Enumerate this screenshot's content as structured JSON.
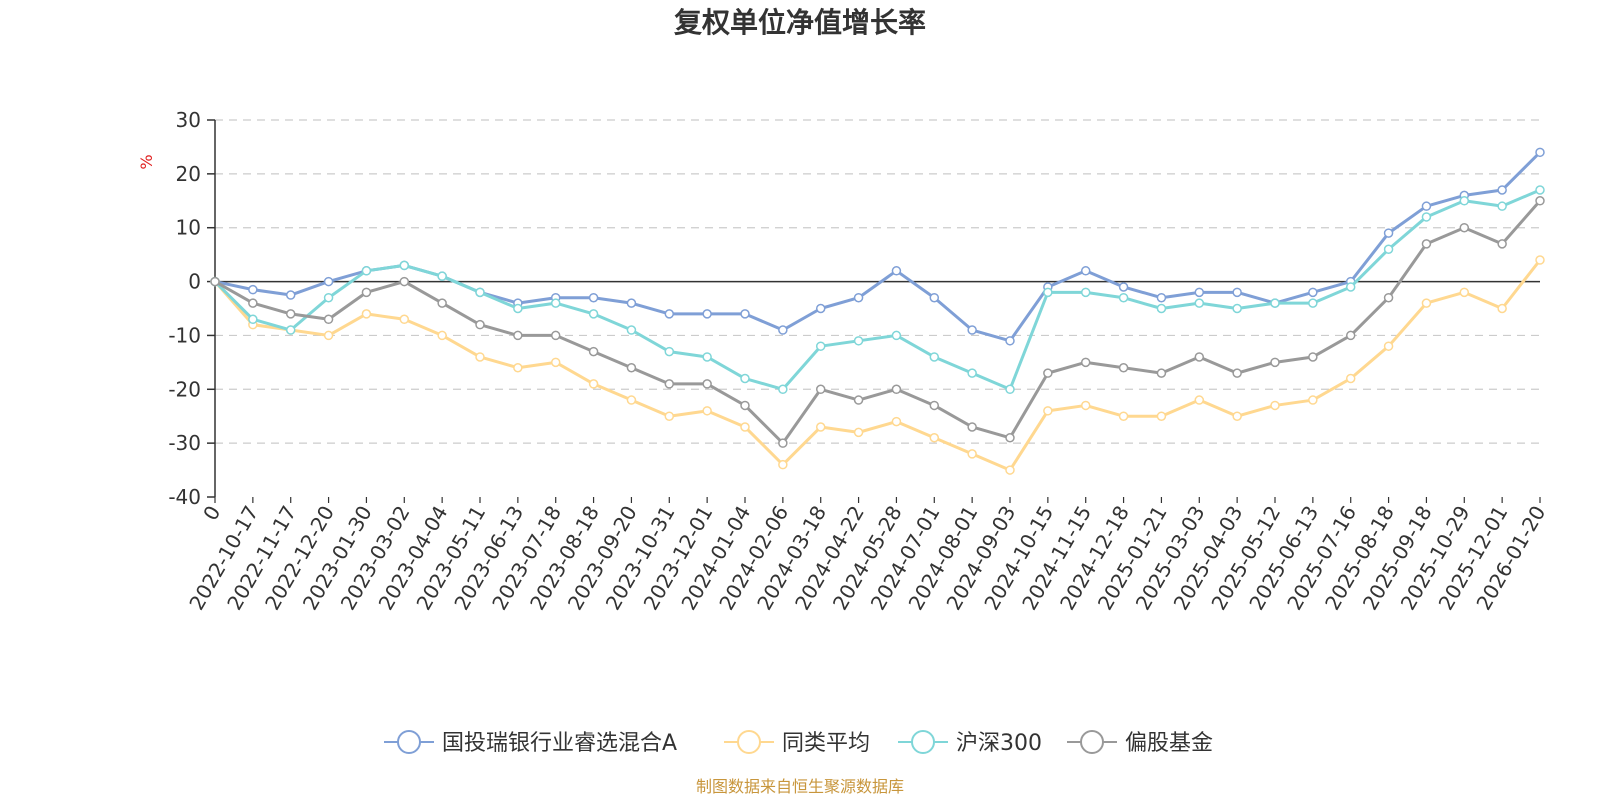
{
  "colors": {
    "fund": "#7f9fd6",
    "peer": "#ffd890",
    "hs300": "#7fd6d8",
    "partial": "#999999",
    "footer": "#c8963c"
  },
  "footer": "制图数据来自恒生聚源数据库",
  "chart_data": {
    "type": "line",
    "title": "复权单位净值增长率",
    "ylabel": "%",
    "xlabel": "",
    "ylim": [
      -40,
      30
    ],
    "yticks": [
      30,
      20,
      10,
      0,
      -10,
      -20,
      -30,
      -40
    ],
    "legend_position": "bottom-center",
    "grid": true,
    "x": [
      "0",
      "2022-10-17",
      "2022-11-17",
      "2022-12-20",
      "2023-01-30",
      "2023-03-02",
      "2023-04-04",
      "2023-05-11",
      "2023-06-13",
      "2023-07-18",
      "2023-08-18",
      "2023-09-20",
      "2023-10-31",
      "2023-12-01",
      "2024-01-04",
      "2024-02-06",
      "2024-03-18",
      "2024-04-22",
      "2024-05-28",
      "2024-07-01",
      "2024-08-01",
      "2024-09-03",
      "2024-10-15",
      "2024-11-15",
      "2024-12-18",
      "2025-01-21",
      "2025-03-03",
      "2025-04-03",
      "2025-05-12",
      "2025-06-13",
      "2025-07-16",
      "2025-08-18",
      "2025-09-18",
      "2025-10-29",
      "2025-12-01",
      "2026-01-20"
    ],
    "series": [
      {
        "name": "国投瑞银行业睿选混合A",
        "color_key": "fund",
        "values": [
          0,
          -1.5,
          -2.5,
          0,
          2,
          3,
          1,
          -2,
          -4,
          -3,
          -3,
          -4,
          -6,
          -6,
          -6,
          -9,
          -5,
          -3,
          2,
          -3,
          -9,
          -11,
          -1,
          2,
          -1,
          -3,
          -2,
          -2,
          -4,
          -2,
          0,
          9,
          14,
          16,
          17,
          24
        ]
      },
      {
        "name": "同类平均",
        "color_key": "peer",
        "values": [
          0,
          -8,
          -9,
          -10,
          -6,
          -7,
          -10,
          -14,
          -16,
          -15,
          -19,
          -22,
          -25,
          -24,
          -27,
          -34,
          -27,
          -28,
          -26,
          -29,
          -32,
          -35,
          -24,
          -23,
          -25,
          -25,
          -22,
          -25,
          -23,
          -22,
          -18,
          -12,
          -4,
          -2,
          -5,
          4
        ]
      },
      {
        "name": "沪深300",
        "color_key": "hs300",
        "values": [
          0,
          -7,
          -9,
          -3,
          2,
          3,
          1,
          -2,
          -5,
          -4,
          -6,
          -9,
          -13,
          -14,
          -18,
          -20,
          -12,
          -11,
          -10,
          -14,
          -17,
          -20,
          -2,
          -2,
          -3,
          -5,
          -4,
          -5,
          -4,
          -4,
          -1,
          6,
          12,
          15,
          14,
          17
        ]
      },
      {
        "name": "偏股基金",
        "color_key": "partial",
        "values": [
          0,
          -4,
          -6,
          -7,
          -2,
          0,
          -4,
          -8,
          -10,
          -10,
          -13,
          -16,
          -19,
          -19,
          -23,
          -30,
          -20,
          -22,
          -20,
          -23,
          -27,
          -29,
          -17,
          -15,
          -16,
          -17,
          -14,
          -17,
          -15,
          -14,
          -10,
          -3,
          7,
          10,
          7,
          15
        ]
      }
    ]
  }
}
